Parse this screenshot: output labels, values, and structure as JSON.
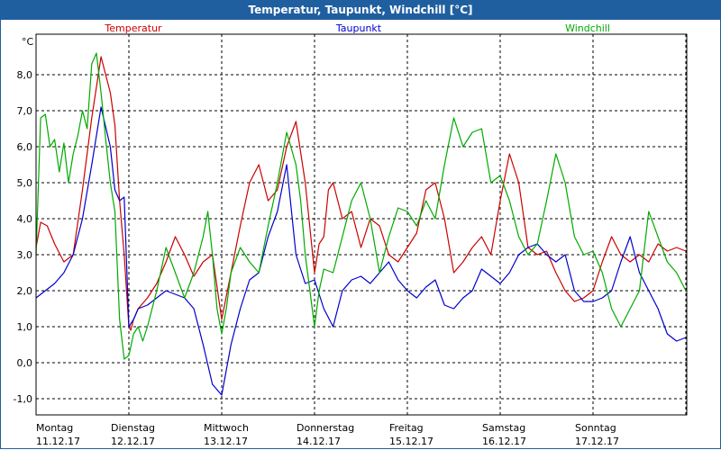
{
  "title": "Temperatur, Taupunkt, Windchill [°C]",
  "chart_data": {
    "type": "line",
    "title": "Temperatur, Taupunkt, Windchill [°C]",
    "ylabel": "°C",
    "ylim": [
      -1.5,
      9.0
    ],
    "yticks": [
      -1.0,
      0.0,
      1.0,
      2.0,
      3.0,
      4.0,
      5.0,
      6.0,
      7.0,
      8.0
    ],
    "ytick_labels": [
      "-1,0",
      "0,0",
      "1,0",
      "2,0",
      "3,0",
      "4,0",
      "5,0",
      "6,0",
      "7,0",
      "8,0"
    ],
    "xlim": [
      0,
      7
    ],
    "x_ticks": [
      {
        "day": "Montag",
        "date": "11.12.17"
      },
      {
        "day": "Dienstag",
        "date": "12.12.17"
      },
      {
        "day": "Mittwoch",
        "date": "13.12.17"
      },
      {
        "day": "Donnerstag",
        "date": "14.12.17"
      },
      {
        "day": "Freitag",
        "date": "15.12.17"
      },
      {
        "day": "Samstag",
        "date": "16.12.17"
      },
      {
        "day": "Sonntag",
        "date": "17.12.17"
      }
    ],
    "grid": true,
    "legend": "top",
    "series": [
      {
        "name": "Temperatur",
        "color": "#cc0000",
        "x": [
          0,
          0.05,
          0.12,
          0.2,
          0.3,
          0.4,
          0.5,
          0.6,
          0.7,
          0.8,
          0.85,
          0.9,
          0.95,
          1.0,
          1.02,
          1.05,
          1.1,
          1.2,
          1.3,
          1.4,
          1.5,
          1.6,
          1.7,
          1.8,
          1.9,
          2.0,
          2.1,
          2.2,
          2.3,
          2.4,
          2.5,
          2.6,
          2.7,
          2.8,
          2.9,
          3.0,
          3.05,
          3.1,
          3.15,
          3.2,
          3.3,
          3.4,
          3.5,
          3.6,
          3.7,
          3.8,
          3.9,
          4.0,
          4.1,
          4.2,
          4.3,
          4.4,
          4.5,
          4.6,
          4.7,
          4.8,
          4.9,
          5.0,
          5.1,
          5.2,
          5.3,
          5.4,
          5.5,
          5.6,
          5.7,
          5.8,
          5.9,
          6.0,
          6.1,
          6.2,
          6.3,
          6.4,
          6.5,
          6.6,
          6.7,
          6.8,
          6.9,
          7.0
        ],
        "values": [
          3.2,
          3.9,
          3.8,
          3.3,
          2.8,
          3.0,
          4.8,
          6.8,
          8.5,
          7.5,
          6.6,
          4.5,
          3.0,
          1.0,
          0.9,
          1.2,
          1.5,
          1.8,
          2.2,
          2.8,
          3.5,
          3.0,
          2.4,
          2.8,
          3.0,
          1.2,
          2.5,
          3.8,
          5.0,
          5.5,
          4.5,
          4.8,
          6.0,
          6.7,
          5.0,
          2.5,
          3.3,
          3.5,
          4.8,
          5.0,
          4.0,
          4.2,
          3.2,
          4.0,
          3.8,
          3.0,
          2.8,
          3.2,
          3.6,
          4.8,
          5.0,
          4.0,
          2.5,
          2.8,
          3.2,
          3.5,
          3.0,
          4.5,
          5.8,
          5.0,
          3.2,
          3.0,
          3.1,
          2.5,
          2.0,
          1.7,
          1.8,
          2.0,
          2.8,
          3.5,
          3.0,
          2.8,
          3.0,
          2.8,
          3.3,
          3.1,
          3.2,
          3.1
        ]
      },
      {
        "name": "Taupunkt",
        "color": "#0000cc",
        "x": [
          0,
          0.1,
          0.2,
          0.3,
          0.4,
          0.5,
          0.6,
          0.7,
          0.8,
          0.85,
          0.9,
          0.95,
          1.0,
          1.05,
          1.1,
          1.2,
          1.3,
          1.4,
          1.5,
          1.6,
          1.7,
          1.8,
          1.9,
          2.0,
          2.1,
          2.2,
          2.3,
          2.4,
          2.5,
          2.6,
          2.7,
          2.8,
          2.9,
          3.0,
          3.1,
          3.2,
          3.3,
          3.4,
          3.5,
          3.6,
          3.7,
          3.8,
          3.9,
          4.0,
          4.1,
          4.2,
          4.3,
          4.4,
          4.5,
          4.6,
          4.7,
          4.8,
          4.9,
          5.0,
          5.1,
          5.2,
          5.3,
          5.4,
          5.5,
          5.6,
          5.7,
          5.8,
          5.9,
          6.0,
          6.1,
          6.2,
          6.3,
          6.4,
          6.5,
          6.6,
          6.7,
          6.8,
          6.9,
          7.0
        ],
        "values": [
          1.8,
          2.0,
          2.2,
          2.5,
          3.0,
          4.0,
          5.5,
          7.1,
          6.0,
          4.8,
          4.5,
          4.6,
          1.0,
          1.2,
          1.5,
          1.6,
          1.8,
          2.0,
          1.9,
          1.8,
          1.5,
          0.5,
          -0.6,
          -0.9,
          0.5,
          1.5,
          2.3,
          2.5,
          3.5,
          4.2,
          5.5,
          3.0,
          2.2,
          2.3,
          1.5,
          1.0,
          2.0,
          2.3,
          2.4,
          2.2,
          2.5,
          2.8,
          2.3,
          2.0,
          1.8,
          2.1,
          2.3,
          1.6,
          1.5,
          1.8,
          2.0,
          2.6,
          2.4,
          2.2,
          2.5,
          3.0,
          3.2,
          3.3,
          3.0,
          2.8,
          3.0,
          2.0,
          1.7,
          1.7,
          1.8,
          2.0,
          2.8,
          3.5,
          2.5,
          2.0,
          1.5,
          0.8,
          0.6,
          0.7
        ]
      },
      {
        "name": "Windchill",
        "color": "#00aa00",
        "x": [
          0,
          0.05,
          0.1,
          0.15,
          0.2,
          0.25,
          0.3,
          0.35,
          0.4,
          0.45,
          0.5,
          0.55,
          0.6,
          0.65,
          0.7,
          0.75,
          0.8,
          0.85,
          0.9,
          0.95,
          1.0,
          1.05,
          1.1,
          1.15,
          1.2,
          1.3,
          1.4,
          1.5,
          1.6,
          1.7,
          1.8,
          1.85,
          1.9,
          1.95,
          2.0,
          2.05,
          2.1,
          2.2,
          2.3,
          2.4,
          2.5,
          2.6,
          2.7,
          2.8,
          2.85,
          2.9,
          3.0,
          3.05,
          3.1,
          3.2,
          3.3,
          3.4,
          3.5,
          3.6,
          3.7,
          3.8,
          3.9,
          4.0,
          4.1,
          4.2,
          4.3,
          4.4,
          4.5,
          4.6,
          4.7,
          4.8,
          4.9,
          5.0,
          5.1,
          5.2,
          5.3,
          5.4,
          5.5,
          5.6,
          5.7,
          5.8,
          5.9,
          6.0,
          6.1,
          6.2,
          6.3,
          6.4,
          6.5,
          6.6,
          6.7,
          6.8,
          6.9,
          7.0
        ],
        "values": [
          3.0,
          6.8,
          6.9,
          6.0,
          6.2,
          5.3,
          6.1,
          5.0,
          5.8,
          6.3,
          7.0,
          6.5,
          8.3,
          8.6,
          7.5,
          6.2,
          5.0,
          4.2,
          1.2,
          0.1,
          0.2,
          0.8,
          1.0,
          0.6,
          1.0,
          2.0,
          3.2,
          2.5,
          1.8,
          2.5,
          3.5,
          4.2,
          3.0,
          1.5,
          0.8,
          1.5,
          2.5,
          3.2,
          2.8,
          2.5,
          3.8,
          5.0,
          6.4,
          5.5,
          4.5,
          3.0,
          1.0,
          2.0,
          2.6,
          2.5,
          3.5,
          4.5,
          5.0,
          4.0,
          2.5,
          3.5,
          4.3,
          4.2,
          3.8,
          4.5,
          4.0,
          5.5,
          6.8,
          6.0,
          6.4,
          6.5,
          5.0,
          5.2,
          4.5,
          3.5,
          3.0,
          3.3,
          4.5,
          5.8,
          5.0,
          3.5,
          3.0,
          3.1,
          2.5,
          1.5,
          1.0,
          1.5,
          2.0,
          4.2,
          3.5,
          2.8,
          2.5,
          2.0
        ]
      }
    ]
  }
}
